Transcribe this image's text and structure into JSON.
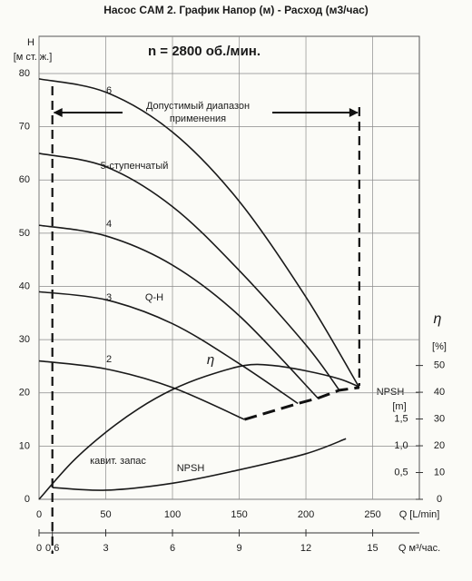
{
  "chart_data": {
    "type": "line",
    "title": "Насос CAM 2. График  Напор (м) - Расход (м3/час)",
    "subtitle": "n = 2800 об./мин.",
    "y_label": "H",
    "y_unit": "[м ст. ж.]",
    "x_label": "Q [L/min]",
    "x2_label": "Q м³/час.",
    "y2_label": "η",
    "y2_unit": "[%]",
    "y3_label": "NPSH",
    "y3_unit": "[m]",
    "annotations": [
      "Q-H",
      "кавит. запас"
    ],
    "range_label": [
      "Допустимый диапазон",
      "применения"
    ],
    "range": [
      10,
      240
    ],
    "grid": true,
    "xlim": [
      0,
      285
    ],
    "xticks": [
      0,
      50,
      100,
      150,
      200,
      250
    ],
    "x2lim": [
      0,
      17.1
    ],
    "x2ticks": [
      0,
      {
        "value": 0.6,
        "label": "0,6"
      },
      3,
      6,
      9,
      12,
      15
    ],
    "ylim": [
      0,
      87
    ],
    "yticks": [
      0,
      10,
      20,
      30,
      40,
      50,
      60,
      70,
      80
    ],
    "y2lim": [
      0,
      173
    ],
    "y2ticks": [
      0,
      10,
      20,
      30,
      40,
      50
    ],
    "y3lim": [
      0,
      8.64
    ],
    "y3ticks": [
      {
        "value": 0.5,
        "label": "0,5"
      },
      {
        "value": 1.0,
        "label": "1,0"
      },
      {
        "value": 1.5,
        "label": "1,5"
      }
    ],
    "series": [
      {
        "name": "6",
        "color": "#1a1a1a",
        "x": [
          0,
          50,
          100,
          150,
          200,
          240
        ],
        "values": [
          79,
          76.5,
          69,
          56,
          38,
          21
        ]
      },
      {
        "name": "5-ступенчатый",
        "color": "#1a1a1a",
        "x": [
          0,
          50,
          100,
          150,
          200,
          225
        ],
        "values": [
          65,
          62.5,
          55,
          43,
          29,
          20.5
        ]
      },
      {
        "name": "4",
        "color": "#1a1a1a",
        "x": [
          0,
          50,
          100,
          150,
          209
        ],
        "values": [
          51.5,
          49.5,
          44,
          34.5,
          19
        ]
      },
      {
        "name": "3",
        "color": "#1a1a1a",
        "x": [
          0,
          50,
          100,
          150,
          194
        ],
        "values": [
          39,
          37.5,
          33,
          25.5,
          18
        ]
      },
      {
        "name": "2",
        "color": "#1a1a1a",
        "x": [
          0,
          50,
          100,
          154
        ],
        "values": [
          26,
          24.5,
          21,
          15
        ]
      },
      {
        "name": "η",
        "color": "#1a1a1a",
        "axis": "y2",
        "x": [
          0,
          25,
          50,
          75,
          100,
          125,
          154,
          175,
          200,
          225,
          240
        ],
        "values": [
          0,
          14,
          25,
          34,
          41,
          46,
          50,
          50,
          48,
          45,
          42
        ]
      },
      {
        "name": "NPSH",
        "color": "#1a1a1a",
        "axis": "y3",
        "x": [
          10,
          50,
          100,
          150,
          200,
          230
        ],
        "values": [
          0.22,
          0.17,
          0.3,
          0.55,
          0.85,
          1.13
        ]
      }
    ]
  }
}
